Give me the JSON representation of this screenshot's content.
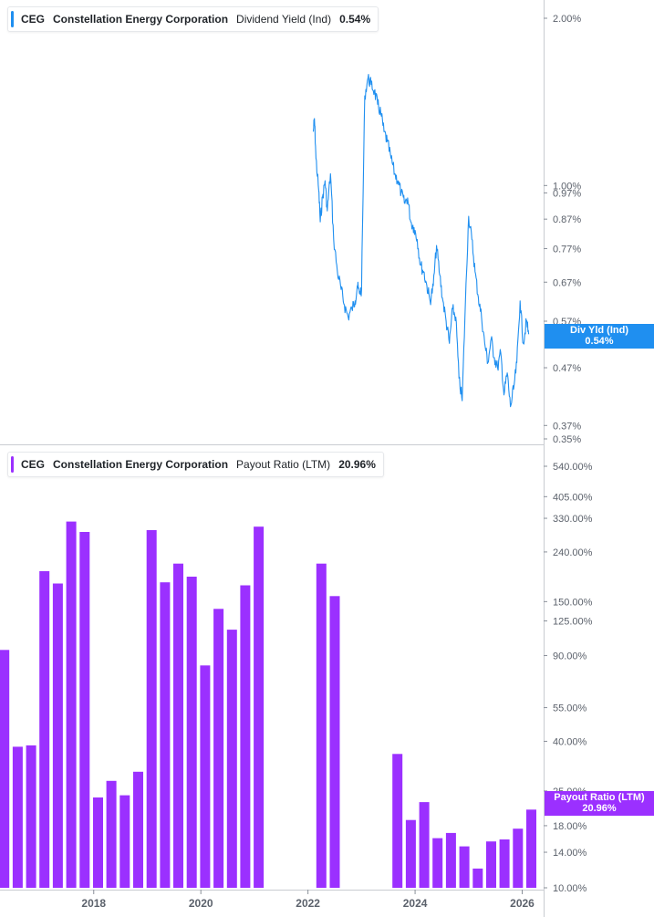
{
  "colors": {
    "yield_line": "#1f8ff0",
    "payout_bar": "#9b30ff",
    "axis": "#c9ccd1",
    "text": "#5b616b"
  },
  "legend_top": {
    "ticker": "CEG",
    "company": "Constellation Energy Corporation",
    "metric": "Dividend Yield (Ind)",
    "value": "0.54%"
  },
  "legend_bottom": {
    "ticker": "CEG",
    "company": "Constellation Energy Corporation",
    "metric": "Payout Ratio (LTM)",
    "value": "20.96%"
  },
  "tags": {
    "top": {
      "label": "Div Yld (Ind)",
      "value": "0.54%"
    },
    "bottom": {
      "label": "Payout Ratio (LTM)",
      "value": "20.96%"
    }
  },
  "chart_data": [
    {
      "type": "line",
      "title": "Dividend Yield (Ind)",
      "scale": "log",
      "ylim": [
        0.34,
        2.12
      ],
      "xlim": [
        2016.25,
        2026.4
      ],
      "y_ticks": [
        "2.00%",
        "1.00%",
        "0.97%",
        "0.87%",
        "0.77%",
        "0.67%",
        "0.57%",
        "0.47%",
        "0.37%",
        "0.35%"
      ],
      "y_tick_values": [
        2.0,
        1.0,
        0.97,
        0.87,
        0.77,
        0.67,
        0.57,
        0.47,
        0.37,
        0.35
      ],
      "series": [
        {
          "name": "Div Yld (Ind)",
          "x": [
            2022.1,
            2022.12,
            2022.15,
            2022.2,
            2022.23,
            2022.27,
            2022.32,
            2022.36,
            2022.42,
            2022.48,
            2022.55,
            2022.62,
            2022.68,
            2022.75,
            2022.82,
            2022.88,
            2022.92,
            2022.96,
            2023.0,
            2023.06,
            2023.12,
            2023.18,
            2023.24,
            2023.3,
            2023.36,
            2023.42,
            2023.48,
            2023.55,
            2023.62,
            2023.68,
            2023.74,
            2023.8,
            2023.86,
            2023.92,
            2023.98,
            2024.04,
            2024.1,
            2024.16,
            2024.22,
            2024.28,
            2024.34,
            2024.4,
            2024.46,
            2024.52,
            2024.58,
            2024.64,
            2024.7,
            2024.76,
            2024.82,
            2024.88,
            2024.94,
            2025.0,
            2025.06,
            2025.12,
            2025.18,
            2025.24,
            2025.3,
            2025.36,
            2025.42,
            2025.48,
            2025.54,
            2025.6,
            2025.66,
            2025.72,
            2025.78,
            2025.84,
            2025.9,
            2025.96,
            2026.02,
            2026.08,
            2026.12
          ],
          "y": [
            1.25,
            1.32,
            1.12,
            0.98,
            0.86,
            0.95,
            1.02,
            0.9,
            1.05,
            0.8,
            0.7,
            0.65,
            0.61,
            0.58,
            0.6,
            0.62,
            0.66,
            0.64,
            0.65,
            1.45,
            1.56,
            1.52,
            1.48,
            1.4,
            1.35,
            1.25,
            1.2,
            1.12,
            1.05,
            1.02,
            0.97,
            0.93,
            0.95,
            0.86,
            0.84,
            0.8,
            0.72,
            0.7,
            0.66,
            0.62,
            0.66,
            0.78,
            0.69,
            0.62,
            0.57,
            0.52,
            0.6,
            0.58,
            0.45,
            0.41,
            0.62,
            0.88,
            0.8,
            0.7,
            0.63,
            0.58,
            0.52,
            0.48,
            0.53,
            0.49,
            0.47,
            0.5,
            0.42,
            0.46,
            0.4,
            0.43,
            0.48,
            0.62,
            0.52,
            0.57,
            0.54
          ]
        }
      ]
    },
    {
      "type": "bar",
      "title": "Payout Ratio (LTM)",
      "scale": "log",
      "ylim": [
        9.3,
        700
      ],
      "xlim": [
        2016.25,
        2026.4
      ],
      "x_ticks": [
        "2018",
        "2020",
        "2022",
        "2024",
        "2026"
      ],
      "x_tick_values": [
        2018,
        2020,
        2022,
        2024,
        2026
      ],
      "y_ticks": [
        "540.00%",
        "405.00%",
        "330.00%",
        "240.00%",
        "150.00%",
        "125.00%",
        "90.00%",
        "55.00%",
        "40.00%",
        "25.00%",
        "18.00%",
        "14.00%",
        "10.00%"
      ],
      "y_tick_values": [
        540,
        405,
        330,
        240,
        150,
        125,
        90,
        55,
        40,
        25,
        18,
        14,
        10
      ],
      "series": [
        {
          "name": "Payout Ratio (LTM)",
          "x": [
            2016.33,
            2016.58,
            2016.83,
            2017.08,
            2017.33,
            2017.58,
            2017.83,
            2018.08,
            2018.33,
            2018.58,
            2018.83,
            2019.08,
            2019.33,
            2019.58,
            2019.83,
            2020.08,
            2020.33,
            2020.58,
            2020.83,
            2021.08,
            2022.25,
            2022.5,
            2023.67,
            2023.92,
            2024.17,
            2024.42,
            2024.67,
            2024.92,
            2025.17,
            2025.42,
            2025.67,
            2025.92,
            2026.17
          ],
          "y": [
            95,
            38,
            38.5,
            200,
            178,
            320,
            290,
            23.5,
            27.5,
            24,
            30,
            295,
            180,
            215,
            190,
            82,
            140,
            115,
            175,
            305,
            215,
            158,
            35.5,
            19,
            22.5,
            16,
            16.8,
            14.8,
            12,
            15.5,
            15.8,
            17.5,
            20.96
          ]
        }
      ]
    }
  ]
}
